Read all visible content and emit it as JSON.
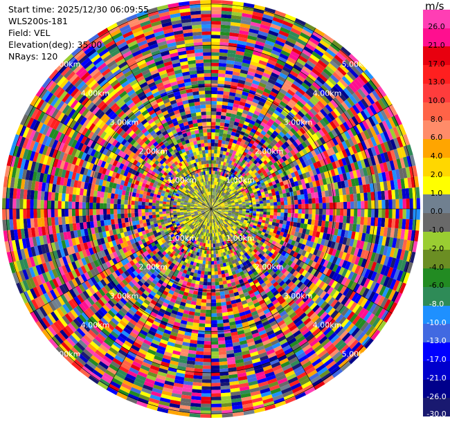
{
  "header": {
    "start_time": "Start time: 2025/12/30 06:09:55",
    "instrument": "WLS200s-181",
    "field": "Field: VEL",
    "elevation": "Elevation(deg): 35.00",
    "nrays": "NRays: 120"
  },
  "colorbar": {
    "unit": "m/s",
    "ticks": [
      "26.0",
      "21.0",
      "17.0",
      "13.0",
      "10.0",
      "8.0",
      "6.0",
      "4.0",
      "2.0",
      "1.0",
      "0.0",
      "-1.0",
      "-2.0",
      "-4.0",
      "-6.0",
      "-8.0",
      "-10.0",
      "-13.0",
      "-17.0",
      "-21.0",
      "-26.0",
      "-30.0"
    ],
    "colors": [
      "#ff3eb4",
      "#ff0f8f",
      "#e8000f",
      "#ff1f1f",
      "#ff3c3c",
      "#ff6347",
      "#ff8c69",
      "#ffa500",
      "#ffd700",
      "#ffff00",
      "#708090",
      "#696969",
      "#9acd32",
      "#6b8e23",
      "#228b22",
      "#2e8b57",
      "#1e90ff",
      "#4169e1",
      "#0000ff",
      "#0000cd",
      "#00008b",
      "#191970"
    ]
  },
  "chart_data": {
    "type": "heatmap",
    "subtype": "PPI polar scan",
    "field": "VEL",
    "elevation_deg": 35.0,
    "n_rays": 120,
    "range_rings_km": [
      {
        "label": "1.00km",
        "value": 1.0
      },
      {
        "label": "2.00km",
        "value": 2.0
      },
      {
        "label": "3.00km",
        "value": 3.0
      },
      {
        "label": "4.00km",
        "value": 4.0
      },
      {
        "label": "5.00km",
        "value": 5.0
      }
    ],
    "max_range_km": 5.1,
    "value_range_ms": [
      -30,
      26
    ],
    "grid": true
  }
}
